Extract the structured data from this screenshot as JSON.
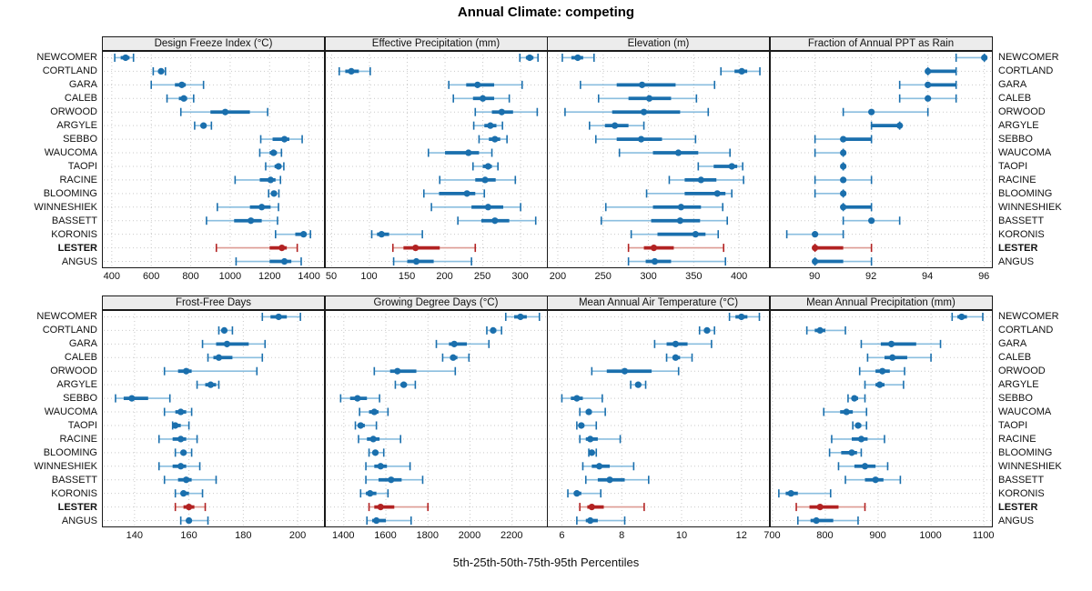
{
  "title": "Annual Climate: competing",
  "footer": {
    "xlabel": "5th-25th-50th-75th-95th Percentiles"
  },
  "colors": {
    "normal": "#1a6fad",
    "normal_light": "#8abedf",
    "highlight": "#b22222",
    "highlight_light": "#dd9b93",
    "strip_bg": "#ececec",
    "grid": "#c9c9c9",
    "panel_border": "#1a1a1a"
  },
  "highlight_row": "LESTER",
  "chart_data": {
    "type": "scatter",
    "subtype": "percentile-interval-dotplot",
    "percentiles": [
      5,
      25,
      50,
      75,
      95
    ],
    "layout": {
      "nrows": 2,
      "ncols": 4,
      "grid": "dotted",
      "legend": "none"
    },
    "categories": [
      "NEWCOMER",
      "CORTLAND",
      "GARA",
      "CALEB",
      "ORWOOD",
      "ARGYLE",
      "SEBBO",
      "WAUCOMA",
      "TAOPI",
      "RACINE",
      "BLOOMING",
      "WINNESHIEK",
      "BASSETT",
      "KORONIS",
      "LESTER",
      "ANGUS"
    ],
    "panels": [
      {
        "title": "Design Freeze Index (°C)",
        "row": 0,
        "col": 0,
        "xlim": [
          350,
          1480
        ],
        "ticks": [
          400,
          600,
          800,
          1000,
          1200,
          1400
        ],
        "series": [
          [
            415,
            445,
            470,
            490,
            510
          ],
          [
            610,
            635,
            650,
            660,
            672
          ],
          [
            600,
            720,
            755,
            775,
            865
          ],
          [
            680,
            740,
            765,
            782,
            815
          ],
          [
            750,
            900,
            975,
            1100,
            1190
          ],
          [
            820,
            850,
            865,
            880,
            905
          ],
          [
            1155,
            1215,
            1275,
            1300,
            1365
          ],
          [
            1150,
            1200,
            1220,
            1237,
            1260
          ],
          [
            1180,
            1225,
            1245,
            1257,
            1272
          ],
          [
            1025,
            1150,
            1205,
            1230,
            1255
          ],
          [
            1195,
            1210,
            1222,
            1232,
            1247
          ],
          [
            935,
            1100,
            1160,
            1205,
            1245
          ],
          [
            880,
            1020,
            1105,
            1160,
            1240
          ],
          [
            1230,
            1330,
            1372,
            1387,
            1407
          ],
          [
            930,
            1200,
            1262,
            1287,
            1340
          ],
          [
            1030,
            1200,
            1275,
            1310,
            1360
          ]
        ]
      },
      {
        "title": "Effective Precipitation (mm)",
        "row": 0,
        "col": 1,
        "xlim": [
          41,
          336
        ],
        "ticks": [
          50,
          100,
          150,
          200,
          250,
          300
        ],
        "series": [
          [
            299,
            307,
            312,
            317,
            323
          ],
          [
            60,
            68,
            76,
            86,
            101
          ],
          [
            205,
            228,
            243,
            265,
            302
          ],
          [
            211,
            237,
            250,
            265,
            285
          ],
          [
            240,
            262,
            275,
            290,
            322
          ],
          [
            238,
            252,
            260,
            268,
            276
          ],
          [
            245,
            258,
            266,
            273,
            282
          ],
          [
            178,
            200,
            231,
            245,
            262
          ],
          [
            237,
            250,
            257,
            262,
            270
          ],
          [
            193,
            240,
            253,
            267,
            293
          ],
          [
            172,
            192,
            229,
            240,
            252
          ],
          [
            182,
            235,
            257,
            277,
            300
          ],
          [
            217,
            248,
            266,
            285,
            320
          ],
          [
            103,
            110,
            116,
            126,
            170
          ],
          [
            131,
            145,
            161,
            193,
            240
          ],
          [
            132,
            150,
            162,
            185,
            235
          ]
        ]
      },
      {
        "title": "Elevation (m)",
        "row": 0,
        "col": 2,
        "xlim": [
          188,
          434
        ],
        "ticks": [
          200,
          250,
          300,
          350,
          400
        ],
        "series": [
          [
            205,
            215,
            222,
            228,
            240
          ],
          [
            380,
            395,
            403,
            409,
            423
          ],
          [
            225,
            265,
            293,
            330,
            373
          ],
          [
            245,
            278,
            301,
            325,
            353
          ],
          [
            208,
            260,
            295,
            335,
            366
          ],
          [
            235,
            252,
            263,
            278,
            295
          ],
          [
            242,
            265,
            292,
            315,
            352
          ],
          [
            268,
            305,
            333,
            355,
            390
          ],
          [
            355,
            372,
            392,
            398,
            404
          ],
          [
            323,
            340,
            358,
            375,
            405
          ],
          [
            298,
            340,
            376,
            385,
            392
          ],
          [
            253,
            305,
            336,
            358,
            382
          ],
          [
            248,
            303,
            335,
            357,
            387
          ],
          [
            281,
            310,
            352,
            363,
            377
          ],
          [
            278,
            295,
            306,
            328,
            383
          ],
          [
            278,
            297,
            307,
            325,
            385
          ]
        ]
      },
      {
        "title": "Fraction of Annual PPT as Rain",
        "row": 0,
        "col": 3,
        "xlim": [
          88.4,
          96.3
        ],
        "ticks": [
          90,
          92,
          94,
          96
        ],
        "series": [
          [
            95,
            96,
            96,
            96,
            96
          ],
          [
            94,
            94,
            94,
            95,
            95
          ],
          [
            93,
            94,
            94,
            95,
            95
          ],
          [
            93,
            94,
            94,
            94,
            95
          ],
          [
            91,
            92,
            92,
            92,
            94
          ],
          [
            92,
            92,
            93,
            93,
            93
          ],
          [
            90,
            91,
            91,
            92,
            92
          ],
          [
            90,
            91,
            91,
            91,
            91
          ],
          [
            91,
            91,
            91,
            91,
            91
          ],
          [
            90,
            91,
            91,
            91,
            92
          ],
          [
            90,
            91,
            91,
            91,
            91
          ],
          [
            91,
            91,
            91,
            92,
            92
          ],
          [
            91,
            92,
            92,
            92,
            93
          ],
          [
            89,
            90,
            90,
            90,
            91
          ],
          [
            90,
            90,
            90,
            91,
            92
          ],
          [
            90,
            90,
            90,
            91,
            92
          ]
        ]
      },
      {
        "title": "Frost-Free Days",
        "row": 1,
        "col": 0,
        "xlim": [
          128,
          210
        ],
        "ticks": [
          140,
          160,
          180,
          200
        ],
        "series": [
          [
            187,
            190,
            193,
            196,
            201
          ],
          [
            171,
            172,
            173,
            174,
            176
          ],
          [
            165,
            170,
            174,
            182,
            188
          ],
          [
            167,
            169,
            171,
            176,
            187
          ],
          [
            151,
            156,
            159,
            161,
            185
          ],
          [
            163,
            166,
            168,
            170,
            171
          ],
          [
            133,
            136,
            139,
            145,
            153
          ],
          [
            151,
            155,
            157,
            159,
            161
          ],
          [
            154,
            155,
            155,
            157,
            160
          ],
          [
            149,
            154,
            157,
            159,
            163
          ],
          [
            155,
            157,
            158,
            159,
            161
          ],
          [
            149,
            154,
            157,
            159,
            164
          ],
          [
            151,
            156,
            159,
            161,
            170
          ],
          [
            155,
            157,
            158,
            160,
            165
          ],
          [
            155,
            158,
            160,
            162,
            166
          ],
          [
            157,
            159,
            160,
            161,
            167
          ]
        ]
      },
      {
        "title": "Growing Degree Days (°C)",
        "row": 1,
        "col": 1,
        "xlim": [
          1310,
          2370
        ],
        "ticks": [
          1400,
          1600,
          1800,
          2000,
          2200
        ],
        "series": [
          [
            2170,
            2210,
            2240,
            2270,
            2330
          ],
          [
            2080,
            2100,
            2110,
            2125,
            2150
          ],
          [
            1840,
            1900,
            1925,
            1985,
            2090
          ],
          [
            1870,
            1905,
            1920,
            1940,
            1995
          ],
          [
            1545,
            1620,
            1655,
            1745,
            1930
          ],
          [
            1645,
            1670,
            1685,
            1700,
            1740
          ],
          [
            1385,
            1430,
            1465,
            1510,
            1570
          ],
          [
            1475,
            1520,
            1545,
            1565,
            1610
          ],
          [
            1455,
            1470,
            1480,
            1500,
            1555
          ],
          [
            1470,
            1510,
            1540,
            1570,
            1670
          ],
          [
            1520,
            1540,
            1550,
            1560,
            1590
          ],
          [
            1505,
            1545,
            1575,
            1605,
            1715
          ],
          [
            1505,
            1565,
            1625,
            1675,
            1775
          ],
          [
            1480,
            1505,
            1525,
            1555,
            1610
          ],
          [
            1520,
            1545,
            1575,
            1640,
            1800
          ],
          [
            1510,
            1535,
            1555,
            1600,
            1720
          ]
        ]
      },
      {
        "title": "Mean Annual Air Temperature (°C)",
        "row": 1,
        "col": 2,
        "xlim": [
          5.5,
          12.95
        ],
        "ticks": [
          6,
          8,
          10,
          12
        ],
        "series": [
          [
            11.6,
            11.8,
            12.0,
            12.2,
            12.6
          ],
          [
            10.6,
            10.75,
            10.85,
            10.95,
            11.1
          ],
          [
            9.1,
            9.5,
            9.8,
            10.2,
            11.0
          ],
          [
            9.5,
            9.7,
            9.8,
            9.95,
            10.35
          ],
          [
            7.0,
            7.5,
            8.1,
            9.0,
            9.9
          ],
          [
            8.3,
            8.45,
            8.55,
            8.65,
            8.8
          ],
          [
            6.0,
            6.3,
            6.5,
            6.7,
            7.35
          ],
          [
            6.6,
            6.8,
            6.9,
            7.0,
            7.45
          ],
          [
            6.5,
            6.6,
            6.65,
            6.75,
            7.15
          ],
          [
            6.6,
            6.8,
            6.95,
            7.2,
            7.95
          ],
          [
            6.9,
            6.95,
            7.0,
            7.05,
            7.15
          ],
          [
            6.7,
            7.0,
            7.25,
            7.6,
            8.4
          ],
          [
            6.8,
            7.2,
            7.6,
            8.1,
            8.9
          ],
          [
            6.2,
            6.4,
            6.5,
            6.65,
            7.3
          ],
          [
            6.6,
            6.85,
            7.0,
            7.4,
            8.75
          ],
          [
            6.5,
            6.8,
            6.95,
            7.2,
            8.1
          ]
        ]
      },
      {
        "title": "Mean Annual Precipitation (mm)",
        "row": 1,
        "col": 3,
        "xlim": [
          695,
          1117
        ],
        "ticks": [
          700,
          800,
          900,
          1000,
          1100
        ],
        "series": [
          [
            1040,
            1050,
            1058,
            1068,
            1098
          ],
          [
            765,
            780,
            790,
            800,
            838
          ],
          [
            868,
            905,
            925,
            972,
            1018
          ],
          [
            880,
            912,
            927,
            955,
            1000
          ],
          [
            865,
            895,
            908,
            922,
            950
          ],
          [
            875,
            895,
            903,
            912,
            948
          ],
          [
            843,
            850,
            855,
            862,
            875
          ],
          [
            797,
            828,
            840,
            852,
            878
          ],
          [
            852,
            858,
            862,
            868,
            878
          ],
          [
            812,
            850,
            868,
            880,
            912
          ],
          [
            808,
            830,
            850,
            860,
            868
          ],
          [
            825,
            855,
            875,
            895,
            918
          ],
          [
            838,
            875,
            895,
            910,
            942
          ],
          [
            712,
            725,
            735,
            748,
            810
          ],
          [
            745,
            770,
            790,
            825,
            875
          ],
          [
            748,
            772,
            783,
            815,
            862
          ]
        ]
      }
    ]
  }
}
